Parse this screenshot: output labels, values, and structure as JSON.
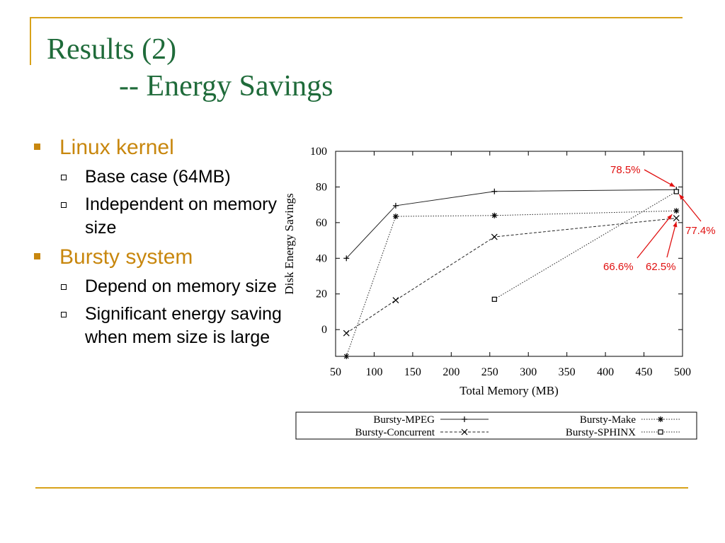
{
  "slide": {
    "title_line1": "Results (2)",
    "title_line2": "-- Energy Savings",
    "bullets": [
      {
        "text": "Linux kernel",
        "sub": [
          "Base case (64MB)",
          "Independent on memory size"
        ]
      },
      {
        "text": "Bursty system",
        "sub": [
          "Depend on memory size",
          "Significant energy saving when mem size is large"
        ]
      }
    ]
  },
  "chart_data": {
    "type": "line",
    "xlabel": "Total Memory (MB)",
    "ylabel": "Disk Energy Savings",
    "xlim": [
      50,
      500
    ],
    "ylim": [
      -15,
      100
    ],
    "xticks": [
      "50",
      "100",
      "150",
      "200",
      "250",
      "300",
      "350",
      "400",
      "450",
      "500"
    ],
    "yticks": [
      "0",
      "20",
      "40",
      "60",
      "80",
      "100"
    ],
    "legend_position": "bottom",
    "series": [
      {
        "name": "Bursty-MPEG",
        "marker": "+",
        "dash": "solid",
        "x": [
          64,
          128,
          256,
          492
        ],
        "y": [
          40,
          69.5,
          77.5,
          78.5
        ]
      },
      {
        "name": "Bursty-Make",
        "marker": "*",
        "dash": "dotted",
        "x": [
          64,
          128,
          256,
          492
        ],
        "y": [
          -15,
          63.5,
          64,
          66.6
        ]
      },
      {
        "name": "Bursty-Concurrent",
        "marker": "x",
        "dash": "dashed",
        "x": [
          64,
          128,
          256,
          492
        ],
        "y": [
          -2,
          16.5,
          52,
          62.5
        ]
      },
      {
        "name": "Bursty-SPHINX",
        "marker": "square",
        "dash": "dotted",
        "x": [
          256,
          492
        ],
        "y": [
          17,
          77.4
        ]
      }
    ],
    "annotations": [
      {
        "text": "78.5%",
        "x": 492,
        "y": 78.5
      },
      {
        "text": "77.4%",
        "x": 492,
        "y": 77.4
      },
      {
        "text": "66.6%",
        "x": 492,
        "y": 66.6
      },
      {
        "text": "62.5%",
        "x": 492,
        "y": 62.5
      }
    ],
    "annotation_color": "#e01010"
  }
}
